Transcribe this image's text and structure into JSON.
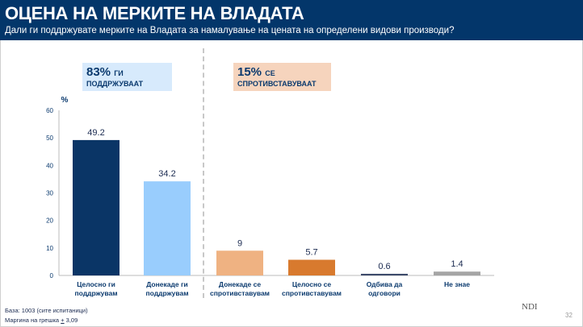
{
  "header": {
    "title": "ОЦЕНА НА МЕРКИТЕ НА ВЛАДАТА",
    "subtitle": "Дали ги поддржувате мерките на Владата за намалување на цената на определени видови производи?"
  },
  "summary": [
    {
      "pct": "83%",
      "word": "ГИ",
      "line2": "ПОДДРЖУВААТ",
      "bg": "#d7eafc"
    },
    {
      "pct": "15%",
      "word": "СЕ",
      "line2": "СПРОТИВСТАВУВААТ",
      "bg": "#f6d4bd"
    }
  ],
  "chart_data": {
    "type": "bar",
    "ylabel": "%",
    "ylim": [
      0,
      60
    ],
    "yticks": [
      0,
      10,
      20,
      30,
      40,
      50,
      60
    ],
    "categories": [
      [
        "Целосно ги",
        "поддржувам"
      ],
      [
        "Донекаде ги",
        "поддржувам"
      ],
      [
        "Донекаде се",
        "спротивставувам"
      ],
      [
        "Целосно се",
        "спротивставувам"
      ],
      [
        "Одбива да",
        "одговори"
      ],
      [
        "Не знае",
        ""
      ]
    ],
    "values": [
      49.2,
      34.2,
      9,
      5.7,
      0.6,
      1.4
    ],
    "value_labels": [
      "49.2",
      "34.2",
      "9",
      "5.7",
      "0.6",
      "1.4"
    ],
    "colors": [
      "#0a3566",
      "#99cdfd",
      "#efb282",
      "#d87a2e",
      "#3c4a6a",
      "#a5a5a5"
    ]
  },
  "footer": {
    "base": "База: 1003 (сите испитаници)",
    "margin_prefix": "Маргина на грешка ",
    "margin_pm": "+",
    "margin_value": " 3,09",
    "logo": "NDI",
    "page": "32"
  }
}
